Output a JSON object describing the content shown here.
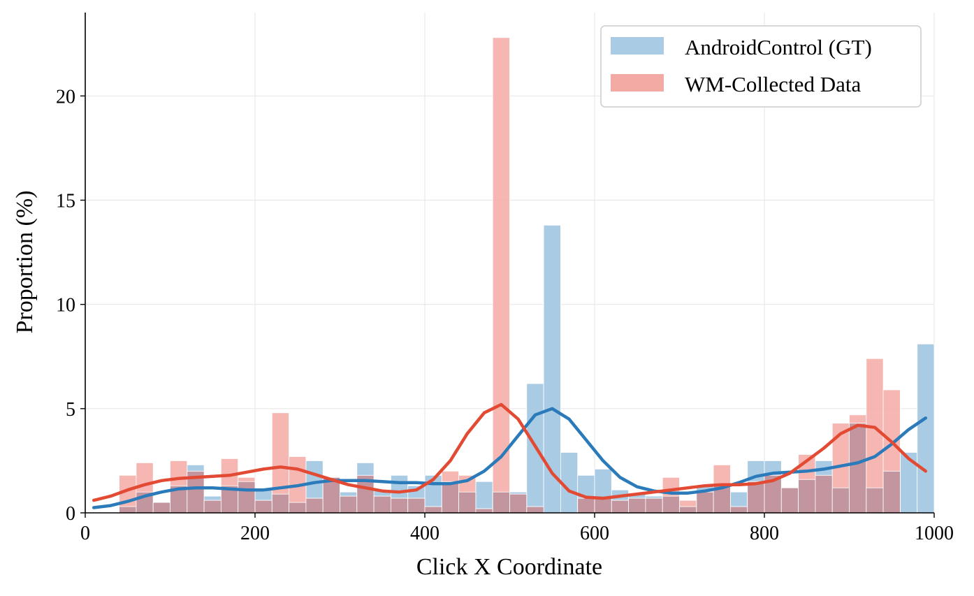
{
  "chart_data": {
    "type": "bar",
    "title": "",
    "xlabel": "Click X Coordinate",
    "ylabel": "Proportion (%)",
    "xlim": [
      0,
      1000
    ],
    "ylim": [
      0,
      24
    ],
    "xticks": [
      "0",
      "200",
      "400",
      "600",
      "800",
      "1000"
    ],
    "yticks": [
      "0",
      "5",
      "10",
      "15",
      "20"
    ],
    "grid": true,
    "legend_position": "top-right",
    "bin_width": 20,
    "bins_start": [
      0,
      20,
      40,
      60,
      80,
      100,
      120,
      140,
      160,
      180,
      200,
      220,
      240,
      260,
      280,
      300,
      320,
      340,
      360,
      380,
      400,
      420,
      440,
      460,
      480,
      500,
      520,
      540,
      560,
      580,
      600,
      620,
      640,
      660,
      680,
      700,
      720,
      740,
      760,
      780,
      800,
      820,
      840,
      860,
      880,
      900,
      920,
      940,
      960,
      980
    ],
    "series": [
      {
        "name": "AndroidControl (GT)",
        "bar_color": "#a9cbe3",
        "line_color": "#2b7bba",
        "values": [
          0,
          0,
          0.3,
          1.0,
          0.5,
          1.3,
          2.3,
          0.8,
          1.3,
          1.5,
          1.1,
          0.9,
          0.5,
          2.5,
          1.7,
          1.0,
          2.4,
          1.1,
          1.8,
          1.3,
          1.8,
          1.5,
          1.0,
          1.5,
          1.0,
          1.0,
          6.2,
          13.8,
          2.9,
          1.8,
          2.1,
          1.1,
          0.9,
          0.8,
          0.8,
          0.3,
          1.3,
          1.3,
          1.0,
          2.5,
          2.5,
          1.2,
          1.6,
          2.5,
          1.2,
          4.3,
          1.2,
          2.0,
          2.9,
          8.1
        ],
        "kde_x": [
          10,
          30,
          50,
          70,
          90,
          110,
          130,
          150,
          170,
          190,
          210,
          230,
          250,
          270,
          290,
          310,
          330,
          350,
          370,
          390,
          410,
          430,
          450,
          470,
          490,
          510,
          530,
          550,
          570,
          590,
          610,
          630,
          650,
          670,
          690,
          710,
          730,
          750,
          770,
          790,
          810,
          830,
          850,
          870,
          890,
          910,
          930,
          950,
          970,
          990
        ],
        "kde_y": [
          0.25,
          0.35,
          0.55,
          0.8,
          1.0,
          1.15,
          1.2,
          1.2,
          1.15,
          1.1,
          1.1,
          1.2,
          1.3,
          1.45,
          1.55,
          1.55,
          1.55,
          1.5,
          1.45,
          1.45,
          1.4,
          1.4,
          1.55,
          2.0,
          2.7,
          3.7,
          4.7,
          5.0,
          4.5,
          3.5,
          2.5,
          1.7,
          1.25,
          1.05,
          0.95,
          0.95,
          1.05,
          1.2,
          1.45,
          1.75,
          1.9,
          1.95,
          2.0,
          2.1,
          2.25,
          2.4,
          2.7,
          3.3,
          4.0,
          4.55
        ]
      },
      {
        "name": "WM-Collected Data",
        "bar_color": "#f4aaa4",
        "line_color": "#e34a33",
        "values": [
          0,
          0,
          1.8,
          2.4,
          0.5,
          2.5,
          2.0,
          0.6,
          2.6,
          1.7,
          0.6,
          4.8,
          2.7,
          0.7,
          1.7,
          0.8,
          1.8,
          0.8,
          0.7,
          0.7,
          0.3,
          2.0,
          1.8,
          0.2,
          22.8,
          0.9,
          0.3,
          0.0,
          0.0,
          0.7,
          0.7,
          0.6,
          0.7,
          0.7,
          1.7,
          0.6,
          1.0,
          2.3,
          0.3,
          1.5,
          1.8,
          1.2,
          2.8,
          1.8,
          4.3,
          4.7,
          7.4,
          5.9,
          0,
          0
        ],
        "kde_x": [
          10,
          30,
          50,
          70,
          90,
          110,
          130,
          150,
          170,
          190,
          210,
          230,
          250,
          270,
          290,
          310,
          330,
          350,
          370,
          390,
          410,
          430,
          450,
          470,
          490,
          510,
          530,
          550,
          570,
          590,
          610,
          630,
          650,
          670,
          690,
          710,
          730,
          750,
          770,
          790,
          810,
          830,
          850,
          870,
          890,
          910,
          930,
          950,
          970,
          990
        ],
        "kde_y": [
          0.6,
          0.8,
          1.1,
          1.35,
          1.55,
          1.65,
          1.7,
          1.75,
          1.8,
          1.95,
          2.1,
          2.2,
          2.1,
          1.85,
          1.6,
          1.35,
          1.2,
          1.05,
          1.0,
          1.1,
          1.6,
          2.5,
          3.8,
          4.8,
          5.2,
          4.5,
          3.2,
          1.9,
          1.05,
          0.75,
          0.7,
          0.8,
          0.9,
          1.0,
          1.1,
          1.2,
          1.3,
          1.35,
          1.35,
          1.4,
          1.55,
          1.9,
          2.5,
          3.1,
          3.8,
          4.2,
          4.1,
          3.4,
          2.6,
          2.0
        ]
      }
    ]
  }
}
